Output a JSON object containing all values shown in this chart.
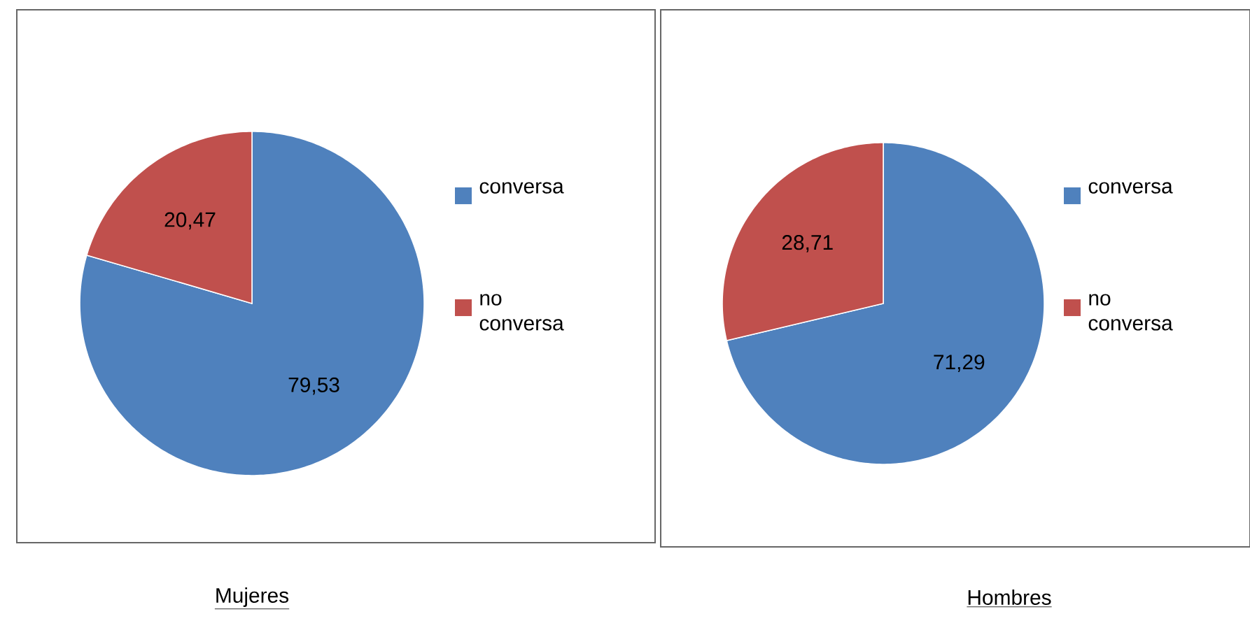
{
  "chart_data": [
    {
      "type": "pie",
      "title": "Mujeres",
      "categories": [
        "conversa",
        "no conversa"
      ],
      "values": [
        79.53,
        20.47
      ],
      "colors": [
        "#4f81bd",
        "#c0504d"
      ],
      "value_labels": [
        "79,53",
        "20,47"
      ],
      "legend": "right"
    },
    {
      "type": "pie",
      "title": "Hombres",
      "categories": [
        "conversa",
        "no conversa"
      ],
      "values": [
        71.29,
        28.71
      ],
      "colors": [
        "#4f81bd",
        "#c0504d"
      ],
      "value_labels": [
        "71,29",
        "28,71"
      ],
      "legend": "right"
    }
  ]
}
